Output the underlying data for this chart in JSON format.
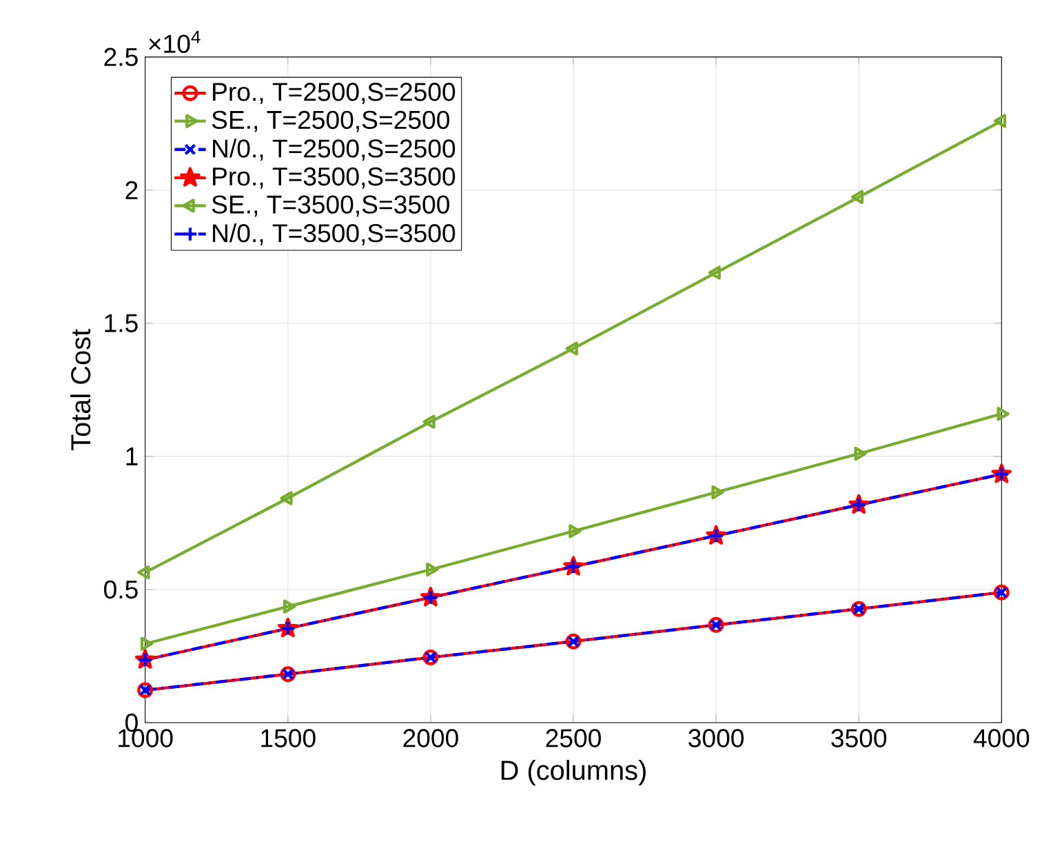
{
  "chart_data": {
    "type": "line",
    "xlabel": "D (columns)",
    "ylabel": "Total Cost",
    "x": [
      1000,
      1500,
      2000,
      2500,
      3000,
      3500,
      4000
    ],
    "xlim": [
      1000,
      4000
    ],
    "xticks": [
      1000,
      1500,
      2000,
      2500,
      3000,
      3500,
      4000
    ],
    "ylim": [
      0,
      2.5
    ],
    "yticks": [
      0,
      0.5,
      1,
      1.5,
      2,
      2.5
    ],
    "annotations": [
      "×10$^{4}$"
    ],
    "grid": true,
    "legend": "top left",
    "series": [
      {
        "name": "Pro., T=2500,S=2500",
        "color": "#ff0000",
        "marker": "circle",
        "line_style": "solid",
        "values": [
          0.122,
          0.182,
          0.245,
          0.305,
          0.367,
          0.427,
          0.489
        ]
      },
      {
        "name": "SE., T=2500,S=2500",
        "color": "#77ac30",
        "marker": "triangle-right",
        "line_style": "solid",
        "values": [
          0.296,
          0.436,
          0.575,
          0.719,
          0.865,
          1.01,
          1.16
        ]
      },
      {
        "name": "N/0., T=2500,S=2500",
        "color": "#0000ff",
        "marker": "cross",
        "line_style": "dashed",
        "values": [
          0.122,
          0.182,
          0.245,
          0.305,
          0.367,
          0.427,
          0.489
        ]
      },
      {
        "name": "Pro., T=3500,S=3500",
        "color": "#ff0000",
        "marker": "star",
        "line_style": "solid",
        "values": [
          0.236,
          0.354,
          0.47,
          0.586,
          0.702,
          0.818,
          0.933
        ]
      },
      {
        "name": "SE., T=3500,S=3500",
        "color": "#77ac30",
        "marker": "triangle-left",
        "line_style": "solid",
        "values": [
          0.564,
          0.843,
          1.13,
          1.405,
          1.69,
          1.974,
          2.26
        ]
      },
      {
        "name": "N/0., T=3500,S=3500",
        "color": "#0000ff",
        "marker": "plus",
        "line_style": "dashed",
        "values": [
          0.236,
          0.354,
          0.47,
          0.586,
          0.702,
          0.818,
          0.933
        ]
      }
    ]
  }
}
